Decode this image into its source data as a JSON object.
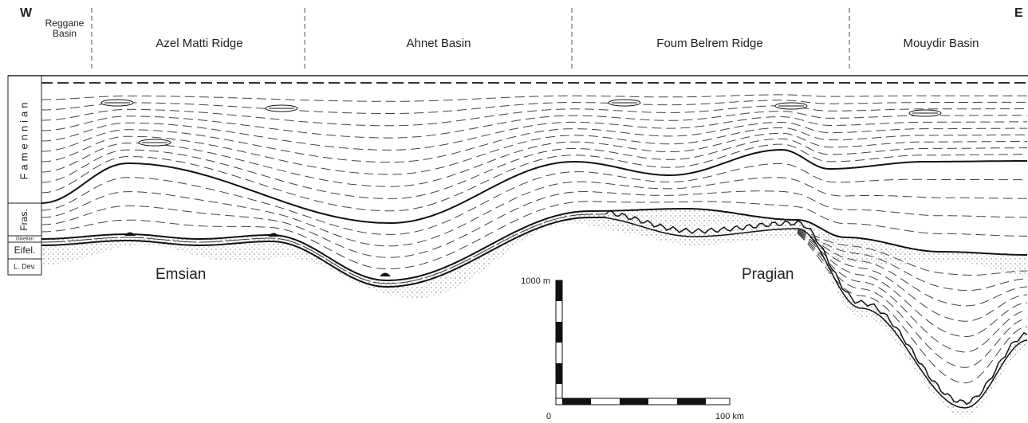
{
  "header": {
    "west": "W",
    "east": "E",
    "regions": [
      "Reggane Basin",
      "Azel Matti Ridge",
      "Ahnet Basin",
      "Foum Belrem Ridge",
      "Mouydir Basin"
    ]
  },
  "column": {
    "units": [
      "Famennian",
      "Fras.",
      "Givetian",
      "Eifel.",
      "L. Dev."
    ]
  },
  "section": {
    "labels": [
      "Emsian",
      "Pragian"
    ]
  },
  "scale": {
    "vertical": "1000 m",
    "origin": "0",
    "horizontal": "100 km"
  }
}
